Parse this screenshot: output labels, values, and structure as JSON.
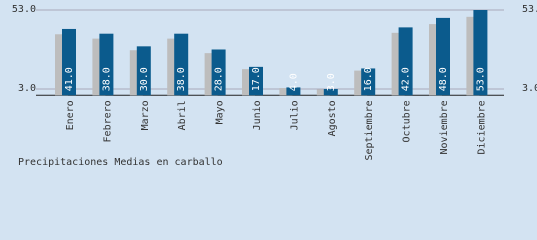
{
  "chart_data": {
    "type": "bar",
    "title": "Precipitaciones Medias en carballo",
    "categories": [
      "Enero",
      "Febrero",
      "Marzo",
      "Abril",
      "Mayo",
      "Junio",
      "Julio",
      "Agosto",
      "Septiembre",
      "Octubre",
      "Noviembre",
      "Diciembre"
    ],
    "values": [
      41,
      38,
      30,
      38,
      28,
      17,
      4,
      3,
      16,
      42,
      48,
      53
    ],
    "value_labels": [
      "41.0",
      "38.0",
      "30.0",
      "38.0",
      "28.0",
      "17.0",
      "4.0",
      "3.0",
      "16.0",
      "42.0",
      "48.0",
      "53.0"
    ],
    "color": "#0b5b8d",
    "ylim": [
      -1,
      53
    ],
    "yticks": [
      {
        "value": 3,
        "label": "3.0"
      },
      {
        "value": 53,
        "label": "53.0"
      }
    ],
    "grid": true
  }
}
